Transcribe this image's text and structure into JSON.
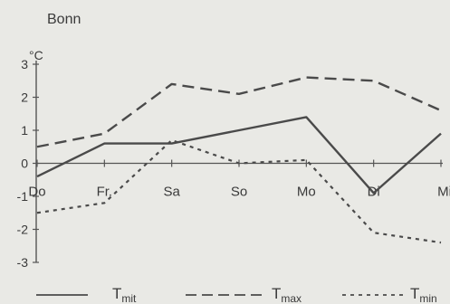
{
  "chart_data": {
    "type": "line",
    "title": "Bonn",
    "ylabel": "°C",
    "categories": [
      "Do",
      "Fr.",
      "Sa",
      "So",
      "Mo",
      "Di",
      "Mi"
    ],
    "ylim": [
      -3,
      3
    ],
    "yticks": [
      3,
      2,
      1,
      0,
      -1,
      -2,
      -3
    ],
    "grid": false,
    "legend_position": "bottom",
    "series": [
      {
        "name": "T",
        "subscript": "mit",
        "style": "solid",
        "values": [
          -0.4,
          0.6,
          0.6,
          1.0,
          1.4,
          -0.9,
          0.9
        ]
      },
      {
        "name": "T",
        "subscript": "max",
        "style": "dashed",
        "values": [
          0.5,
          0.9,
          2.4,
          2.1,
          2.6,
          2.5,
          1.6
        ]
      },
      {
        "name": "T",
        "subscript": "min",
        "style": "dotted",
        "values": [
          -1.5,
          -1.2,
          0.7,
          0.0,
          0.1,
          -2.1,
          -2.4
        ]
      }
    ],
    "colors": {
      "background": "#e9e9e5",
      "line": "#4a4a4a",
      "axis": "#555555",
      "text": "#3a3a3a"
    }
  }
}
